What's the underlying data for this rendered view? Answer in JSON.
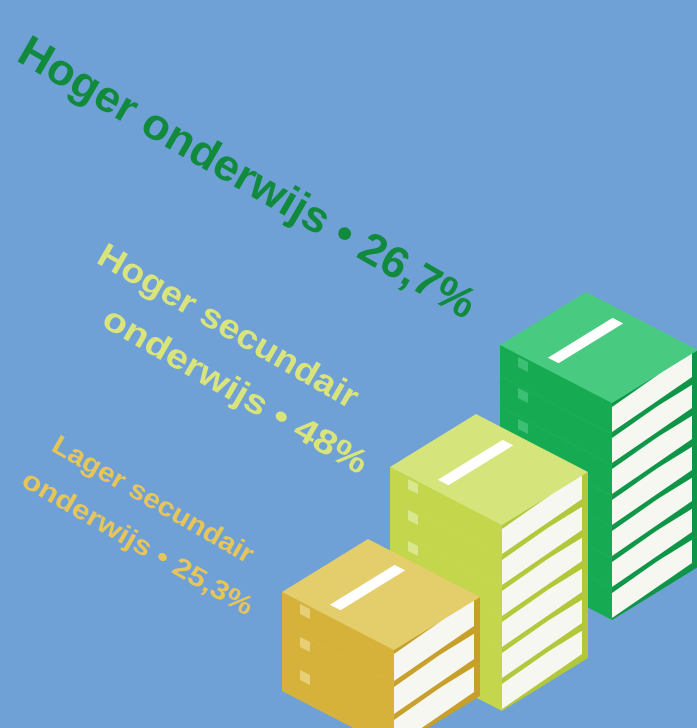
{
  "labels": [
    {
      "lines": [
        "Hoger onderwijs • 26,7%"
      ]
    },
    {
      "lines": [
        "Hoger secundair",
        "onderwijs • 48%"
      ]
    },
    {
      "lines": [
        "Lager secundair",
        "onderwijs • 25,3%"
      ]
    }
  ]
}
